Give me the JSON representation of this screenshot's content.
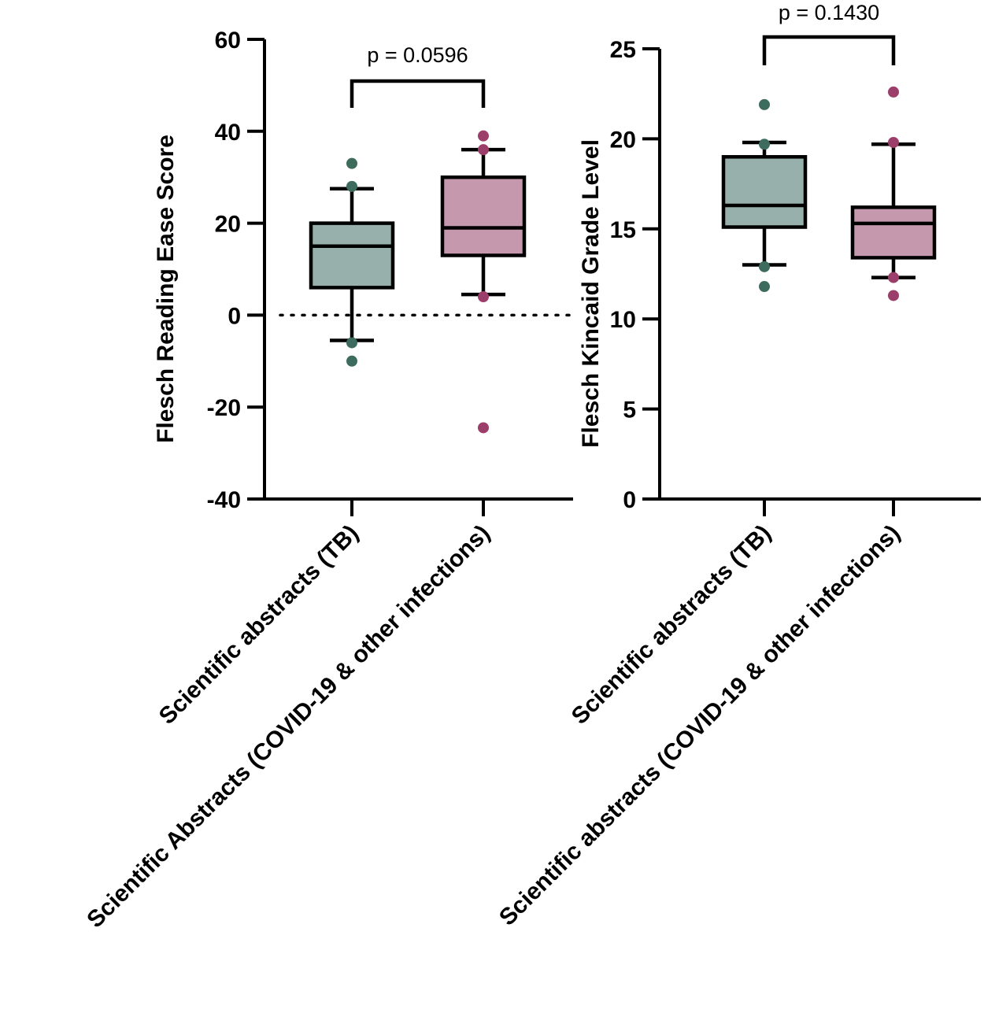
{
  "colors": {
    "tb_fill": "#97b0ab",
    "tb_point": "#3d6b5d",
    "covid_fill": "#c598ae",
    "covid_point": "#9c3e6a"
  },
  "chart_data": [
    {
      "type": "box",
      "ylabel": "Flesch Reading Ease Score",
      "ylim": [
        -40,
        60
      ],
      "yticks": [
        -40,
        -20,
        0,
        20,
        40,
        60
      ],
      "categories": [
        "Scientific abstracts (TB)",
        "Scientific Abstracts (COVID-19 & other infections)"
      ],
      "reference_line": 0,
      "boxes": [
        {
          "q1": 6,
          "median": 15,
          "q3": 20,
          "whisker_low": -5.5,
          "whisker_high": 27.5,
          "outliers": [
            33,
            28,
            -6,
            -10
          ]
        },
        {
          "q1": 13,
          "median": 19,
          "q3": 30,
          "whisker_low": 4.5,
          "whisker_high": 36,
          "outliers": [
            39,
            36,
            4,
            -24.5
          ]
        }
      ],
      "annotation": {
        "text": "p = 0.0596",
        "between": [
          0,
          1
        ],
        "y": 51
      }
    },
    {
      "type": "box",
      "ylabel": "Flesch Kincaid Grade Level",
      "ylim": [
        0,
        25
      ],
      "yticks": [
        0,
        5,
        10,
        15,
        20,
        25
      ],
      "categories": [
        "Scientific abstracts (TB)",
        "Scientific abstracts (COVID-19 & other infections)"
      ],
      "boxes": [
        {
          "q1": 15.1,
          "median": 16.3,
          "q3": 19,
          "whisker_low": 13,
          "whisker_high": 19.8,
          "outliers": [
            21.9,
            19.7,
            12.9,
            11.8
          ]
        },
        {
          "q1": 13.4,
          "median": 15.3,
          "q3": 16.2,
          "whisker_low": 12.3,
          "whisker_high": 19.7,
          "outliers": [
            22.6,
            19.8,
            12.3,
            11.3
          ]
        }
      ],
      "annotation": {
        "text": "p = 0.1430",
        "between": [
          0,
          1
        ],
        "y": 25
      }
    }
  ]
}
